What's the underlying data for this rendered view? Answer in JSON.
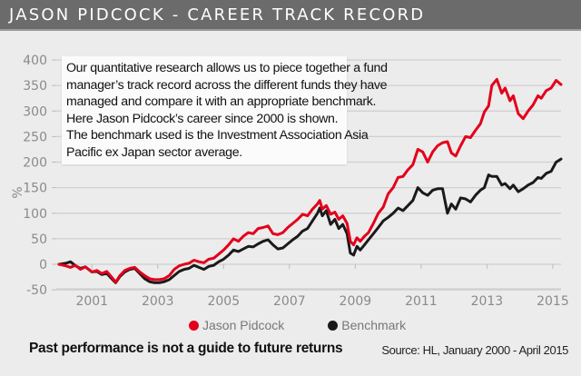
{
  "title": "JASON PIDCOCK - CAREER TRACK RECORD",
  "note_lines": [
    "Our quantitative research allows us to piece together a fund",
    "manager’s track record across the different funds they have",
    "managed and compare it with an appropriate benchmark.",
    "Here Jason Pidcock’s career since 2000 is shown.",
    "The benchmark used is the Investment Association Asia",
    "Pacific ex Japan sector average."
  ],
  "disclaimer": "Past performance is not a guide to future returns",
  "source": "Source: HL, January 2000 - April 2015",
  "chart_data": {
    "type": "line",
    "title": "JASON PIDCOCK - CAREER TRACK RECORD",
    "xlabel": "",
    "ylabel": "%",
    "xlim": [
      2000,
      2015.3
    ],
    "ylim": [
      -50,
      400
    ],
    "grid": true,
    "yticks": [
      400,
      350,
      300,
      250,
      200,
      150,
      100,
      50,
      0,
      -50
    ],
    "ytick_labels": [
      "400",
      "350",
      "300",
      "250",
      "200",
      "150",
      "100",
      "50",
      "0",
      "-50"
    ],
    "xticks": [
      2001,
      2003,
      2005,
      2007,
      2009,
      2011,
      2013,
      2015
    ],
    "xtick_labels": [
      "2001",
      "2003",
      "2005",
      "2007",
      "2009",
      "2011",
      "2013",
      "2015"
    ],
    "legend_position": "bottom-center",
    "series": [
      {
        "name": "Jason Pidcock",
        "color": "#e3001b",
        "x": [
          2000.0,
          2000.2,
          2000.35,
          2000.5,
          2000.65,
          2000.8,
          2001.0,
          2001.15,
          2001.3,
          2001.45,
          2001.6,
          2001.72,
          2001.85,
          2002.0,
          2002.15,
          2002.3,
          2002.45,
          2002.6,
          2002.75,
          2002.9,
          2003.05,
          2003.2,
          2003.35,
          2003.5,
          2003.65,
          2003.8,
          2003.95,
          2004.1,
          2004.25,
          2004.4,
          2004.55,
          2004.7,
          2004.85,
          2005.0,
          2005.15,
          2005.3,
          2005.45,
          2005.6,
          2005.75,
          2005.9,
          2006.05,
          2006.2,
          2006.35,
          2006.5,
          2006.65,
          2006.8,
          2006.95,
          2007.1,
          2007.25,
          2007.4,
          2007.55,
          2007.7,
          2007.85,
          2007.92,
          2008.0,
          2008.12,
          2008.25,
          2008.38,
          2008.5,
          2008.62,
          2008.75,
          2008.85,
          2008.95,
          2009.05,
          2009.15,
          2009.28,
          2009.4,
          2009.55,
          2009.7,
          2009.85,
          2010.0,
          2010.15,
          2010.3,
          2010.45,
          2010.6,
          2010.75,
          2010.9,
          2011.05,
          2011.2,
          2011.35,
          2011.5,
          2011.65,
          2011.8,
          2011.92,
          2012.05,
          2012.2,
          2012.35,
          2012.5,
          2012.65,
          2012.8,
          2012.92,
          2013.05,
          2013.15,
          2013.3,
          2013.45,
          2013.55,
          2013.7,
          2013.8,
          2013.95,
          2014.1,
          2014.25,
          2014.4,
          2014.55,
          2014.65,
          2014.8,
          2014.95,
          2015.1,
          2015.25
        ],
        "values": [
          0,
          -3,
          -6,
          -2,
          -10,
          -5,
          -15,
          -12,
          -18,
          -14,
          -25,
          -35,
          -22,
          -12,
          -8,
          -6,
          -15,
          -22,
          -28,
          -30,
          -30,
          -28,
          -22,
          -10,
          -3,
          0,
          2,
          8,
          5,
          3,
          10,
          12,
          20,
          28,
          38,
          50,
          45,
          55,
          62,
          60,
          70,
          72,
          75,
          60,
          58,
          62,
          72,
          80,
          88,
          98,
          95,
          108,
          118,
          125,
          108,
          115,
          98,
          102,
          88,
          95,
          80,
          45,
          38,
          52,
          45,
          55,
          62,
          80,
          100,
          112,
          138,
          150,
          170,
          172,
          185,
          195,
          225,
          220,
          200,
          220,
          232,
          238,
          240,
          218,
          212,
          232,
          250,
          248,
          262,
          275,
          298,
          310,
          350,
          362,
          335,
          345,
          320,
          330,
          295,
          285,
          300,
          312,
          330,
          325,
          340,
          345,
          360,
          352
        ]
      },
      {
        "name": "Benchmark",
        "color": "#1a1a1a",
        "x": [
          2000.0,
          2000.2,
          2000.35,
          2000.5,
          2000.65,
          2000.8,
          2001.0,
          2001.15,
          2001.3,
          2001.45,
          2001.6,
          2001.72,
          2001.85,
          2002.0,
          2002.15,
          2002.3,
          2002.45,
          2002.6,
          2002.75,
          2002.9,
          2003.05,
          2003.2,
          2003.35,
          2003.5,
          2003.65,
          2003.8,
          2003.95,
          2004.1,
          2004.25,
          2004.4,
          2004.55,
          2004.7,
          2004.85,
          2005.0,
          2005.15,
          2005.3,
          2005.45,
          2005.6,
          2005.75,
          2005.9,
          2006.05,
          2006.2,
          2006.35,
          2006.5,
          2006.65,
          2006.8,
          2006.95,
          2007.1,
          2007.25,
          2007.4,
          2007.55,
          2007.7,
          2007.85,
          2007.92,
          2008.0,
          2008.12,
          2008.25,
          2008.38,
          2008.5,
          2008.62,
          2008.75,
          2008.85,
          2008.95,
          2009.05,
          2009.15,
          2009.28,
          2009.4,
          2009.55,
          2009.7,
          2009.85,
          2010.0,
          2010.15,
          2010.3,
          2010.45,
          2010.6,
          2010.75,
          2010.9,
          2011.05,
          2011.2,
          2011.35,
          2011.5,
          2011.65,
          2011.8,
          2011.92,
          2012.05,
          2012.2,
          2012.35,
          2012.5,
          2012.65,
          2012.8,
          2012.92,
          2013.05,
          2013.15,
          2013.3,
          2013.45,
          2013.55,
          2013.7,
          2013.8,
          2013.95,
          2014.1,
          2014.25,
          2014.4,
          2014.55,
          2014.65,
          2014.8,
          2014.95,
          2015.1,
          2015.25
        ],
        "values": [
          0,
          2,
          5,
          -3,
          -8,
          -5,
          -15,
          -14,
          -20,
          -18,
          -28,
          -36,
          -24,
          -15,
          -10,
          -8,
          -18,
          -28,
          -34,
          -36,
          -36,
          -34,
          -30,
          -22,
          -14,
          -10,
          -8,
          -2,
          -6,
          -10,
          -4,
          -2,
          5,
          10,
          18,
          28,
          25,
          30,
          35,
          34,
          40,
          45,
          48,
          38,
          30,
          32,
          40,
          48,
          55,
          65,
          70,
          85,
          100,
          110,
          95,
          105,
          78,
          88,
          70,
          78,
          60,
          22,
          18,
          35,
          28,
          38,
          48,
          60,
          72,
          85,
          92,
          100,
          110,
          105,
          115,
          125,
          150,
          140,
          135,
          145,
          148,
          148,
          100,
          118,
          108,
          130,
          128,
          122,
          135,
          145,
          150,
          175,
          172,
          172,
          155,
          158,
          148,
          155,
          142,
          148,
          155,
          160,
          170,
          168,
          178,
          182,
          200,
          206
        ]
      }
    ]
  }
}
